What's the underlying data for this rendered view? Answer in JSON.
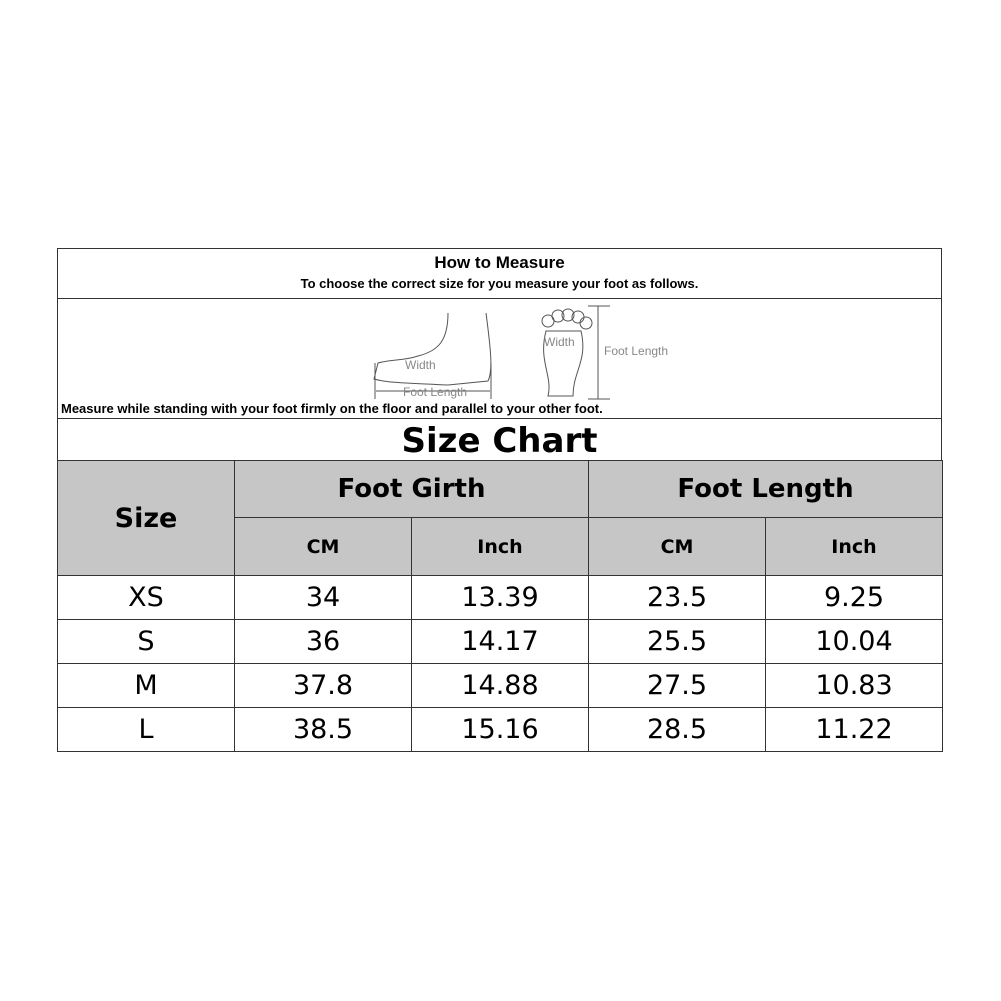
{
  "how_to": {
    "title": "How to Measure",
    "subtitle": "To choose the correct size for you measure your foot as follows.",
    "diagram_labels": {
      "width": "Width",
      "foot_length": "Foot Length"
    },
    "note": "Measure while standing with your foot firmly on the floor and parallel to your other foot."
  },
  "size_chart": {
    "title": "Size Chart",
    "headers": {
      "size": "Size",
      "girth": "Foot Girth",
      "length": "Foot Length",
      "cm": "CM",
      "inch": "Inch"
    },
    "rows": [
      [
        "XS",
        "34",
        "13.39",
        "23.5",
        "9.25"
      ],
      [
        "S",
        "36",
        "14.17",
        "25.5",
        "10.04"
      ],
      [
        "M",
        "37.8",
        "14.88",
        "27.5",
        "10.83"
      ],
      [
        "L",
        "38.5",
        "15.16",
        "28.5",
        "11.22"
      ]
    ]
  },
  "colors": {
    "header_bg": "#c6c6c6"
  }
}
